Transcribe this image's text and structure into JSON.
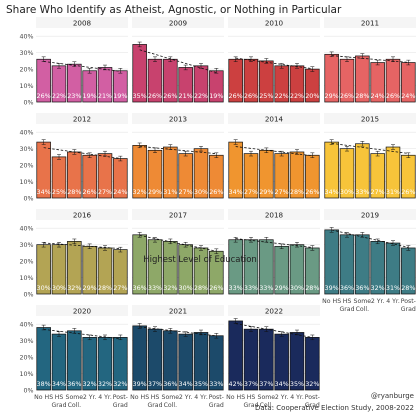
{
  "title": "Share Who Identify as Atheist, Agnostic, or Nothing in Particular",
  "xlabel": "Highest Level of Education",
  "credit": "@ryanburge",
  "source": "Data: Cooperative Election Study, 2008-2022",
  "chart_data": {
    "type": "bar",
    "categories": [
      "No HS",
      "HS Grad",
      "Some Coll.",
      "2 Yr.",
      "4 Yr.",
      "Post-Grad"
    ],
    "category_lines": [
      [
        "No HS"
      ],
      [
        "HS",
        "Grad"
      ],
      [
        "Some",
        "Coll."
      ],
      [
        "2 Yr."
      ],
      [
        "4 Yr."
      ],
      [
        "Post-",
        "Grad"
      ]
    ],
    "ylim": [
      0,
      45
    ],
    "yticks": [
      0,
      10,
      20,
      30,
      40
    ],
    "ytick_labels": [
      "0%",
      "10%",
      "20%",
      "30%",
      "40%"
    ],
    "grid": true,
    "panels": [
      {
        "year": "2008",
        "color": "#d25fa3",
        "values": [
          26,
          22,
          23,
          19,
          21,
          19
        ],
        "labels": [
          "26%",
          "22%",
          "23%",
          "19%",
          "21%",
          "19%"
        ]
      },
      {
        "year": "2009",
        "color": "#c8426e",
        "values": [
          35,
          26,
          26,
          21,
          22,
          19
        ],
        "labels": [
          "35%",
          "26%",
          "26%",
          "21%",
          "22%",
          "19%"
        ]
      },
      {
        "year": "2010",
        "color": "#cc4040",
        "values": [
          26,
          26,
          25,
          22,
          22,
          20
        ],
        "labels": [
          "26%",
          "26%",
          "25%",
          "22%",
          "22%",
          "20%"
        ]
      },
      {
        "year": "2011",
        "color": "#e66464",
        "values": [
          29,
          26,
          28,
          24,
          26,
          24
        ],
        "labels": [
          "29%",
          "26%",
          "28%",
          "24%",
          "26%",
          "24%"
        ]
      },
      {
        "year": "2012",
        "color": "#e8734a",
        "values": [
          34,
          25,
          28,
          26,
          27,
          24
        ],
        "labels": [
          "34%",
          "25%",
          "28%",
          "26%",
          "27%",
          "24%"
        ]
      },
      {
        "year": "2013",
        "color": "#ee8a35",
        "values": [
          32,
          29,
          31,
          27,
          30,
          26
        ],
        "labels": [
          "32%",
          "29%",
          "31%",
          "27%",
          "30%",
          "26%"
        ]
      },
      {
        "year": "2014",
        "color": "#f0952f",
        "values": [
          34,
          27,
          29,
          27,
          28,
          26
        ],
        "labels": [
          "34%",
          "27%",
          "29%",
          "27%",
          "28%",
          "26%"
        ]
      },
      {
        "year": "2015",
        "color": "#f7c43a",
        "values": [
          34,
          30,
          33,
          27,
          31,
          26
        ],
        "labels": [
          "34%",
          "30%",
          "33%",
          "27%",
          "31%",
          "26%"
        ]
      },
      {
        "year": "2016",
        "color": "#b3a454",
        "values": [
          30,
          30,
          32,
          29,
          28,
          27
        ],
        "labels": [
          "30%",
          "30%",
          "32%",
          "29%",
          "28%",
          "27%"
        ]
      },
      {
        "year": "2017",
        "color": "#8ea868",
        "values": [
          36,
          33,
          32,
          30,
          28,
          26
        ],
        "labels": [
          "36%",
          "33%",
          "32%",
          "30%",
          "28%",
          "26%"
        ]
      },
      {
        "year": "2018",
        "color": "#6a9a84",
        "values": [
          33,
          33,
          33,
          29,
          30,
          28
        ],
        "labels": [
          "33%",
          "33%",
          "33%",
          "29%",
          "30%",
          "28%"
        ]
      },
      {
        "year": "2019",
        "color": "#3e7c85",
        "values": [
          39,
          36,
          36,
          32,
          31,
          28
        ],
        "labels": [
          "39%",
          "36%",
          "36%",
          "32%",
          "31%",
          "28%"
        ]
      },
      {
        "year": "2020",
        "color": "#236680",
        "values": [
          38,
          34,
          36,
          32,
          32,
          32
        ],
        "labels": [
          "38%",
          "34%",
          "36%",
          "32%",
          "32%",
          "32%"
        ]
      },
      {
        "year": "2021",
        "color": "#1c4a6a",
        "values": [
          39,
          37,
          36,
          34,
          35,
          33
        ],
        "labels": [
          "39%",
          "37%",
          "36%",
          "34%",
          "35%",
          "33%"
        ]
      },
      {
        "year": "2022",
        "color": "#1a2a5c",
        "values": [
          42,
          37,
          37,
          34,
          35,
          32
        ],
        "labels": [
          "42%",
          "37%",
          "37%",
          "34%",
          "35%",
          "32%"
        ]
      }
    ]
  }
}
